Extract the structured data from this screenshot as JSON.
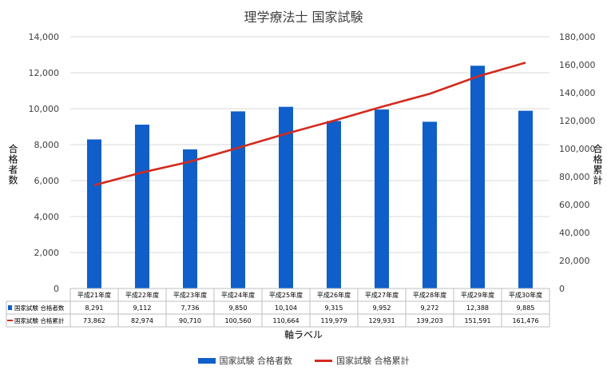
{
  "chart_data": {
    "type": "bar",
    "title": "理学療法士 国家試験",
    "xlabel": "軸ラベル",
    "ylabel": "合格者数",
    "ylabel_right": "合格累計",
    "categories": [
      "平成21年度",
      "平成22年度",
      "平成23年度",
      "平成24年度",
      "平成25年度",
      "平成26年度",
      "平成27年度",
      "平成28年度",
      "平成29年度",
      "平成30年度"
    ],
    "series": [
      {
        "name": "国家試験 合格者数",
        "type": "bar",
        "axis": "left",
        "values": [
          8291,
          9112,
          7736,
          9850,
          10104,
          9315,
          9952,
          9272,
          12388,
          9885
        ],
        "labels": [
          "8,291",
          "9,112",
          "7,736",
          "9,850",
          "10,104",
          "9,315",
          "9,952",
          "9,272",
          "12,388",
          "9,885"
        ]
      },
      {
        "name": "国家試験 合格累計",
        "type": "line",
        "axis": "right",
        "values": [
          73862,
          82974,
          90710,
          100560,
          110664,
          119979,
          129931,
          139203,
          151591,
          161476
        ],
        "labels": [
          "73,862",
          "82,974",
          "90,710",
          "100,560",
          "110,664",
          "119,979",
          "129,931",
          "139,203",
          "151,591",
          "161,476"
        ]
      }
    ],
    "ylim": [
      0,
      14000
    ],
    "ylim_right": [
      0,
      180000
    ],
    "yticks": [
      "0",
      "2,000",
      "4,000",
      "6,000",
      "8,000",
      "10,000",
      "12,000",
      "14,000"
    ],
    "yticks_right": [
      "0",
      "20,000",
      "40,000",
      "60,000",
      "80,000",
      "100,000",
      "120,000",
      "140,000",
      "160,000",
      "180,000"
    ],
    "grid": true,
    "legend_position": "bottom",
    "colors": {
      "bar": "#0f5ec9",
      "line": "#d32a1e"
    }
  }
}
